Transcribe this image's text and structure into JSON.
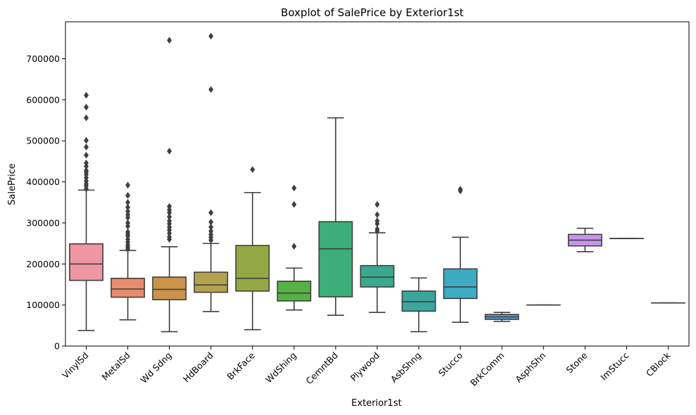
{
  "chart_data": {
    "type": "boxplot",
    "title": "Boxplot of SalePrice by Exterior1st",
    "xlabel": "Exterior1st",
    "ylabel": "SalePrice",
    "ylim": [
      0,
      790000
    ],
    "yticks": [
      0,
      100000,
      200000,
      300000,
      400000,
      500000,
      600000,
      700000
    ],
    "grid": false,
    "x_tick_rotation": 45,
    "line_color": "#3f3f3f",
    "categories": [
      {
        "name": "VinylSd",
        "color": "#ee97a2",
        "whisker_low": 38000,
        "q1": 160000,
        "median": 200000,
        "q3": 249000,
        "whisker_high": 380000,
        "outliers": [
          383000,
          390000,
          395000,
          402000,
          410000,
          418000,
          424000,
          428000,
          438000,
          446000,
          465000,
          485000,
          501000,
          556000,
          582000,
          611000
        ]
      },
      {
        "name": "MetalSd",
        "color": "#e58d6d",
        "whisker_low": 64000,
        "q1": 119000,
        "median": 139000,
        "q3": 165000,
        "whisker_high": 233000,
        "outliers": [
          236000,
          241000,
          246000,
          253000,
          260000,
          268000,
          273000,
          278000,
          292000,
          300000,
          313000,
          320000,
          328000,
          338000,
          350000,
          367000,
          392000
        ]
      },
      {
        "name": "Wd Sdng",
        "color": "#c9944a",
        "whisker_low": 35000,
        "q1": 113000,
        "median": 138000,
        "q3": 168000,
        "whisker_high": 242000,
        "outliers": [
          260000,
          266000,
          275000,
          283000,
          290000,
          298000,
          305000,
          315000,
          325000,
          332000,
          340000,
          475000,
          745000
        ]
      },
      {
        "name": "HdBoard",
        "color": "#b5a24c",
        "whisker_low": 84000,
        "q1": 131000,
        "median": 149000,
        "q3": 180000,
        "whisker_high": 250000,
        "outliers": [
          258000,
          265000,
          272000,
          280000,
          290000,
          302000,
          325000,
          625000,
          755000
        ]
      },
      {
        "name": "BrkFace",
        "color": "#94a943",
        "whisker_low": 40000,
        "q1": 134000,
        "median": 165000,
        "q3": 245000,
        "whisker_high": 374000,
        "outliers": [
          430000
        ]
      },
      {
        "name": "WdShing",
        "color": "#56b146",
        "whisker_low": 88000,
        "q1": 110000,
        "median": 129000,
        "q3": 158000,
        "whisker_high": 190000,
        "outliers": [
          243000,
          345000,
          385000
        ]
      },
      {
        "name": "CemntBd",
        "color": "#3cae78",
        "whisker_low": 75000,
        "q1": 120000,
        "median": 237000,
        "q3": 303000,
        "whisker_high": 556000,
        "outliers": []
      },
      {
        "name": "Plywood",
        "color": "#3ba98f",
        "whisker_low": 82000,
        "q1": 144000,
        "median": 168000,
        "q3": 196000,
        "whisker_high": 276000,
        "outliers": [
          280000,
          285000,
          298000,
          305000,
          320000,
          345000
        ]
      },
      {
        "name": "AsbShng",
        "color": "#3ca69c",
        "whisker_low": 35000,
        "q1": 85000,
        "median": 108000,
        "q3": 134000,
        "whisker_high": 166000,
        "outliers": []
      },
      {
        "name": "Stucco",
        "color": "#3eabc5",
        "whisker_low": 58000,
        "q1": 116000,
        "median": 144000,
        "q3": 188000,
        "whisker_high": 265000,
        "outliers": [
          378000,
          382000
        ]
      },
      {
        "name": "BrkComm",
        "color": "#5a9fd1",
        "whisker_low": 60000,
        "q1": 65000,
        "median": 71000,
        "q3": 77000,
        "whisker_high": 82000,
        "outliers": []
      },
      {
        "name": "AsphShn",
        "color": "#a49ce4",
        "whisker_low": 100000,
        "q1": 100000,
        "median": 100000,
        "q3": 100000,
        "whisker_high": 100000,
        "outliers": []
      },
      {
        "name": "Stone",
        "color": "#c994ea",
        "whisker_low": 230000,
        "q1": 244000,
        "median": 258000,
        "q3": 272000,
        "whisker_high": 287000,
        "outliers": []
      },
      {
        "name": "ImStucc",
        "color": "#e98fd4",
        "whisker_low": 262000,
        "q1": 262000,
        "median": 262000,
        "q3": 262000,
        "whisker_high": 262000,
        "outliers": []
      },
      {
        "name": "CBlock",
        "color": "#ec93b6",
        "whisker_low": 105000,
        "q1": 105000,
        "median": 105000,
        "q3": 105000,
        "whisker_high": 105000,
        "outliers": []
      }
    ]
  }
}
